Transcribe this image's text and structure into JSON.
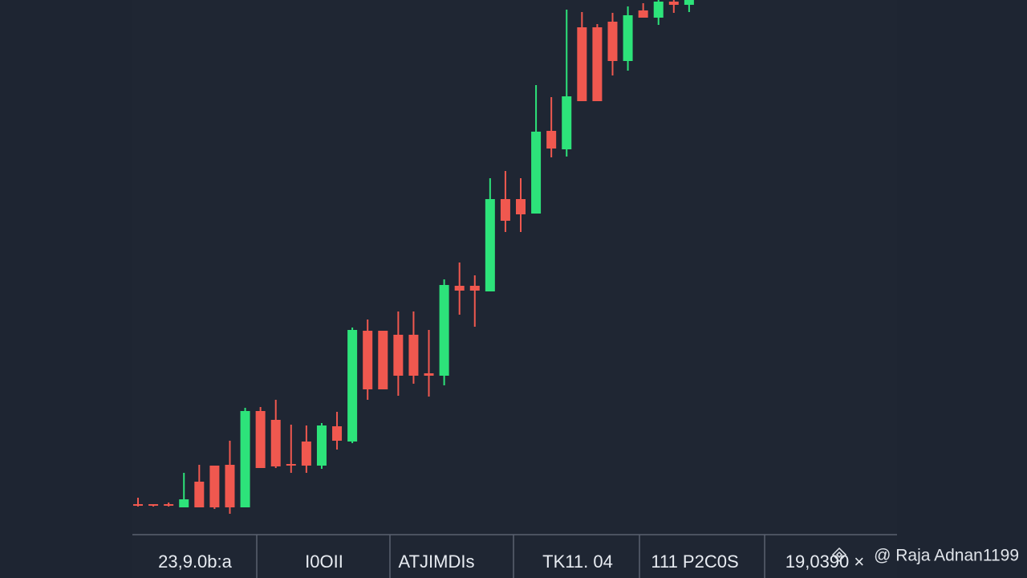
{
  "chart_data": {
    "type": "candlestick",
    "categories": [
      null,
      null,
      null,
      null,
      null,
      null,
      null,
      null,
      null,
      null,
      null,
      null,
      null,
      null,
      null,
      null,
      null,
      null,
      null,
      null,
      null,
      null,
      null,
      null,
      null,
      null,
      null,
      null,
      null,
      null,
      null,
      null,
      null,
      null,
      null,
      null,
      null
    ],
    "open": [
      12,
      12,
      12,
      8,
      40,
      60,
      61,
      8,
      128,
      117,
      62,
      90,
      60,
      109,
      90,
      228,
      228,
      223,
      223,
      175,
      172,
      284,
      284,
      277,
      392,
      392,
      374,
      477,
      454,
      606,
      606,
      613,
      564,
      627,
      618,
      638,
      634
    ],
    "high": [
      20,
      12,
      14,
      51,
      61,
      60,
      91,
      132,
      133,
      142,
      111,
      110,
      113,
      127,
      232,
      242,
      228,
      252,
      252,
      229,
      292,
      313,
      297,
      418,
      427,
      418,
      534,
      519,
      628,
      625,
      610,
      624,
      632,
      636,
      640,
      640,
      640
    ],
    "low": [
      9,
      9,
      9,
      8,
      8,
      6,
      0,
      8,
      57,
      57,
      51,
      51,
      56,
      80,
      88,
      142,
      155,
      147,
      162,
      146,
      160,
      248,
      233,
      277,
      351,
      351,
      374,
      444,
      445,
      514,
      514,
      546,
      552,
      618,
      609,
      624,
      625
    ],
    "close": [
      10,
      10,
      10,
      18,
      8,
      8,
      8,
      128,
      57,
      59,
      60,
      60,
      110,
      91,
      229,
      155,
      155,
      172,
      172,
      172,
      285,
      278,
      278,
      392,
      365,
      373,
      476,
      455,
      520,
      514,
      514,
      564,
      621,
      618,
      638,
      634,
      640
    ],
    "up_color": "#2de37a",
    "down_color": "#f0584f",
    "ylim": [
      0,
      640
    ]
  },
  "footer": {
    "cells": [
      "23,9.0b:a",
      "I0OII",
      "ATJIMDIs",
      "TK11. 04",
      "111 P2C0S",
      "19,0390 ×"
    ],
    "watermark": "@ Raja Adnan1199"
  }
}
